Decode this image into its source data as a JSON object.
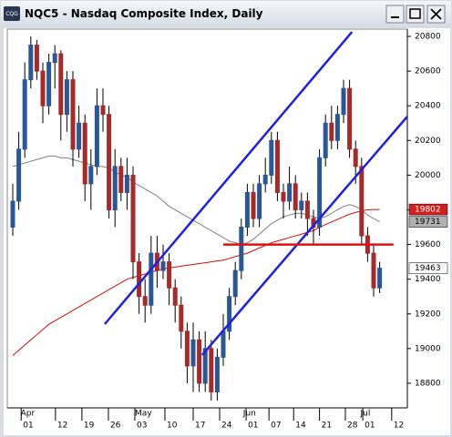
{
  "chart_data": {
    "type": "candlestick",
    "icon_label": "CQG",
    "title": "NQC5 - Nasdaq Composite Index, Daily",
    "open": [
      19700,
      19850,
      20150,
      20550,
      20750,
      20600,
      20400,
      20650,
      20700,
      20350,
      20550,
      20150,
      20300,
      19950,
      20050,
      20400,
      20350,
      19800,
      20050,
      19900,
      20000,
      19500,
      19300,
      19250,
      19550,
      19450,
      19500,
      19350,
      19250,
      19100,
      18900,
      19050,
      18800,
      19000,
      18750,
      18950,
      19100,
      19300,
      19450,
      19700,
      19900,
      19750,
      19950,
      20000,
      20200,
      19900,
      19850,
      19950,
      19800,
      19850,
      19750,
      19700,
      20100,
      20300,
      20200,
      20350,
      20500,
      20150,
      20050,
      19650,
      19550,
      19350
    ],
    "high": [
      19950,
      20250,
      20650,
      20800,
      20780,
      20650,
      20700,
      20750,
      20720,
      20600,
      20600,
      20400,
      20350,
      20150,
      20500,
      20500,
      20400,
      20150,
      20100,
      20100,
      20050,
      19550,
      19400,
      19650,
      19650,
      19600,
      19550,
      19400,
      19300,
      19150,
      19150,
      19100,
      19100,
      19050,
      19000,
      19200,
      19350,
      19500,
      19750,
      19950,
      19950,
      20000,
      20100,
      20250,
      20250,
      19950,
      20050,
      20000,
      19900,
      19900,
      19800,
      20150,
      20350,
      20400,
      20400,
      20550,
      20550,
      20200,
      20100,
      19700,
      19600,
      19500
    ],
    "low": [
      19650,
      19800,
      20100,
      20500,
      20550,
      20300,
      20350,
      20500,
      20200,
      20250,
      20050,
      20100,
      19850,
      19800,
      20000,
      20250,
      19750,
      19700,
      19850,
      19800,
      19400,
      19200,
      19150,
      19200,
      19350,
      19400,
      19250,
      19150,
      19000,
      18800,
      18750,
      18750,
      18750,
      18700,
      18700,
      18900,
      19050,
      19250,
      19400,
      19650,
      19700,
      19700,
      19900,
      19950,
      19850,
      19750,
      19800,
      19750,
      19750,
      19650,
      19600,
      19650,
      20050,
      20150,
      20150,
      20300,
      20100,
      19950,
      19600,
      19500,
      19300,
      19320
    ],
    "close": [
      19850,
      20150,
      20550,
      20750,
      20600,
      20400,
      20650,
      20700,
      20350,
      20550,
      20150,
      20300,
      19950,
      20050,
      20400,
      20350,
      19800,
      20050,
      19900,
      20000,
      19500,
      19300,
      19250,
      19550,
      19450,
      19500,
      19350,
      19250,
      19100,
      18900,
      19050,
      18800,
      19000,
      18750,
      18950,
      19100,
      19300,
      19450,
      19700,
      19900,
      19750,
      19950,
      20000,
      20200,
      19900,
      19850,
      19950,
      19800,
      19850,
      19750,
      19700,
      20100,
      20300,
      20200,
      20350,
      20500,
      20150,
      20050,
      19650,
      19550,
      19350,
      19463
    ],
    "up_color": "#2b5797",
    "down_color": "#a52a2a",
    "overlays": [
      {
        "color": "#d01010",
        "values": [
          18960,
          18990,
          19020,
          19050,
          19080,
          19110,
          19140,
          19160,
          19180,
          19200,
          19220,
          19240,
          19260,
          19280,
          19300,
          19320,
          19340,
          19360,
          19380,
          19400,
          19410,
          19420,
          19430,
          19440,
          19450,
          19460,
          19465,
          19470,
          19475,
          19480,
          19485,
          19490,
          19495,
          19500,
          19505,
          19510,
          19520,
          19530,
          19540,
          19550,
          19565,
          19580,
          19595,
          19610,
          19620,
          19630,
          19640,
          19650,
          19660,
          19670,
          19680,
          19700,
          19715,
          19730,
          19745,
          19760,
          19775,
          19785,
          19795,
          19800,
          19802,
          19802
        ]
      },
      {
        "color": "#808080",
        "values": [
          20050,
          20060,
          20070,
          20080,
          20090,
          20100,
          20110,
          20110,
          20100,
          20100,
          20090,
          20080,
          20070,
          20060,
          20050,
          20050,
          20040,
          20020,
          20000,
          19990,
          19960,
          19940,
          19920,
          19900,
          19880,
          19850,
          19820,
          19800,
          19780,
          19760,
          19740,
          19720,
          19700,
          19680,
          19660,
          19640,
          19620,
          19610,
          19600,
          19610,
          19630,
          19660,
          19690,
          19720,
          19740,
          19760,
          19770,
          19780,
          19780,
          19770,
          19760,
          19750,
          19760,
          19780,
          19800,
          19820,
          19830,
          19820,
          19800,
          19770,
          19750,
          19731
        ]
      }
    ],
    "trendlines": [
      {
        "color": "#2020e0",
        "x1": 15.3,
        "y1": 19141,
        "x2": 56.4,
        "y2": 20826
      },
      {
        "color": "#2020e0",
        "x1": 31.5,
        "y1": 18963,
        "x2": 65.6,
        "y2": 20338
      },
      {
        "color": "#e01010",
        "x1": 35,
        "y1": 19600,
        "x2": 63.3,
        "y2": 19600
      }
    ],
    "markers": [
      {
        "value": 19802,
        "color": "#d02020",
        "text_color": "#ffffff"
      },
      {
        "value": 19731,
        "color": "#b0b0b0",
        "text_color": "#000000"
      },
      {
        "value": 19463,
        "color": "#ffffff",
        "text_color": "#000000"
      }
    ],
    "ylim": [
      18658,
      20842
    ],
    "yticks": [
      18800,
      19000,
      19200,
      19400,
      19600,
      19800,
      20000,
      20200,
      20400,
      20600,
      20800
    ],
    "xticks": [
      {
        "value": 1.4,
        "label": "01"
      },
      {
        "value": 7.1,
        "label": "12"
      },
      {
        "value": 11.5,
        "label": "19"
      },
      {
        "value": 15.9,
        "label": "26"
      },
      {
        "value": 20.3,
        "label": "03"
      },
      {
        "value": 25.3,
        "label": "10"
      },
      {
        "value": 30,
        "label": "17"
      },
      {
        "value": 34.4,
        "label": "24"
      },
      {
        "value": 38.8,
        "label": "01"
      },
      {
        "value": 42.6,
        "label": "07"
      },
      {
        "value": 46.7,
        "label": "14"
      },
      {
        "value": 51,
        "label": "21"
      },
      {
        "value": 55.3,
        "label": "28"
      },
      {
        "value": 58.2,
        "label": "01"
      },
      {
        "value": 63,
        "label": "12"
      }
    ],
    "months": [
      {
        "value": 1,
        "label": "Apr"
      },
      {
        "value": 20,
        "label": "May"
      },
      {
        "value": 38,
        "label": "Jun"
      },
      {
        "value": 57.5,
        "label": "Jul"
      }
    ]
  }
}
